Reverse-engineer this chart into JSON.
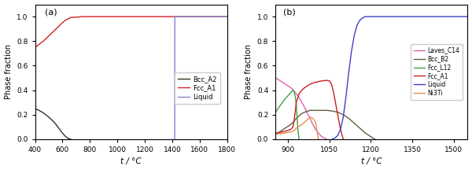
{
  "panel_a": {
    "label": "(a)",
    "xlim": [
      400,
      1800
    ],
    "xticks": [
      400,
      600,
      800,
      1000,
      1200,
      1400,
      1600,
      1800
    ],
    "ylim": [
      0.0,
      1.1
    ],
    "yticks": [
      0.0,
      0.2,
      0.4,
      0.6,
      0.8,
      1.0
    ],
    "xlabel": "t / °C",
    "ylabel": "Phase fraction",
    "series": {
      "Bcc_A2": {
        "color": "#3a3020",
        "points_x": [
          400,
          430,
          460,
          490,
          520,
          550,
          580,
          600,
          620,
          640,
          660
        ],
        "points_y": [
          0.25,
          0.235,
          0.215,
          0.19,
          0.16,
          0.125,
          0.08,
          0.05,
          0.025,
          0.007,
          0.0
        ]
      },
      "Fcc_A1": {
        "color": "#d42020",
        "points_x": [
          400,
          420,
          440,
          460,
          480,
          500,
          530,
          560,
          590,
          620,
          660,
          750,
          1000,
          1400,
          1418,
          1800
        ],
        "points_y": [
          0.75,
          0.765,
          0.783,
          0.8,
          0.82,
          0.843,
          0.875,
          0.907,
          0.94,
          0.97,
          0.993,
          1.0,
          1.0,
          1.0,
          1.0,
          1.0
        ]
      },
      "Liquid": {
        "color": "#8080d0",
        "points_x": [
          1418,
          1419,
          1800
        ],
        "points_y": [
          0.0,
          1.0,
          1.0
        ]
      }
    },
    "legend": {
      "Bcc_A2": "#3a3020",
      "Fcc_A1": "#d42020",
      "Liquid": "#8080d0"
    }
  },
  "panel_b": {
    "label": "(b)",
    "xlim": [
      855,
      1550
    ],
    "xticks": [
      900,
      1050,
      1200,
      1350,
      1500
    ],
    "ylim": [
      0.0,
      1.1
    ],
    "yticks": [
      0.0,
      0.2,
      0.4,
      0.6,
      0.8,
      1.0
    ],
    "xlabel": "t / °C",
    "ylabel": "Phase fraction",
    "series": {
      "Laves_C14": {
        "color": "#e060b0",
        "points_x": [
          855,
          870,
          890,
          910,
          920,
          930,
          940,
          950,
          960,
          970,
          980,
          990,
          1000,
          1010,
          1020,
          1030,
          1035,
          1038,
          1040
        ],
        "points_y": [
          0.5,
          0.48,
          0.45,
          0.42,
          0.4,
          0.37,
          0.34,
          0.3,
          0.26,
          0.21,
          0.17,
          0.12,
          0.08,
          0.05,
          0.025,
          0.01,
          0.005,
          0.002,
          0.0
        ]
      },
      "Bcc_B2": {
        "color": "#606040",
        "points_x": [
          855,
          870,
          890,
          910,
          920,
          930,
          940,
          950,
          960,
          980,
          1000,
          1020,
          1040,
          1060,
          1080,
          1100,
          1120,
          1140,
          1160,
          1180,
          1200,
          1210,
          1215
        ],
        "points_y": [
          0.04,
          0.06,
          0.09,
          0.12,
          0.14,
          0.17,
          0.19,
          0.21,
          0.22,
          0.235,
          0.235,
          0.235,
          0.235,
          0.23,
          0.22,
          0.2,
          0.17,
          0.13,
          0.09,
          0.05,
          0.02,
          0.005,
          0.0
        ]
      },
      "Fcc_L12": {
        "color": "#40a040",
        "points_x": [
          855,
          870,
          890,
          910,
          918,
          922,
          926,
          930,
          933,
          936,
          940
        ],
        "points_y": [
          0.22,
          0.27,
          0.33,
          0.38,
          0.4,
          0.39,
          0.35,
          0.28,
          0.18,
          0.07,
          0.0
        ]
      },
      "Fcc_A1": {
        "color": "#c82020",
        "points_x": [
          855,
          870,
          890,
          910,
          918,
          922,
          926,
          930,
          940,
          950,
          960,
          980,
          1000,
          1020,
          1040,
          1050,
          1055,
          1060,
          1065,
          1070,
          1080,
          1090,
          1100
        ],
        "points_y": [
          0.05,
          0.055,
          0.065,
          0.08,
          0.1,
          0.15,
          0.22,
          0.3,
          0.37,
          0.4,
          0.42,
          0.45,
          0.465,
          0.475,
          0.48,
          0.475,
          0.46,
          0.43,
          0.38,
          0.32,
          0.2,
          0.08,
          0.0
        ]
      },
      "Liquid": {
        "color": "#4040c8",
        "points_x": [
          1060,
          1070,
          1080,
          1090,
          1100,
          1110,
          1120,
          1130,
          1140,
          1150,
          1160,
          1170,
          1180,
          1200,
          1550
        ],
        "points_y": [
          0.0,
          0.01,
          0.03,
          0.08,
          0.18,
          0.35,
          0.55,
          0.72,
          0.85,
          0.93,
          0.97,
          0.99,
          1.0,
          1.0,
          1.0
        ]
      },
      "Ni3Ti": {
        "color": "#e09050",
        "points_x": [
          855,
          870,
          890,
          910,
          918,
          922,
          926,
          930,
          940,
          950,
          960,
          970,
          980,
          990,
          1000,
          1005,
          1010
        ],
        "points_y": [
          0.04,
          0.045,
          0.05,
          0.06,
          0.065,
          0.07,
          0.08,
          0.09,
          0.105,
          0.12,
          0.14,
          0.16,
          0.18,
          0.17,
          0.14,
          0.07,
          0.0
        ]
      }
    },
    "legend_order": [
      "Laves_C14",
      "Bcc_B2",
      "Fcc_L12",
      "Fcc_A1",
      "Liquid",
      "Ni3Ti"
    ]
  },
  "fig_bgcolor": "#ffffff",
  "linewidth": 1.0
}
